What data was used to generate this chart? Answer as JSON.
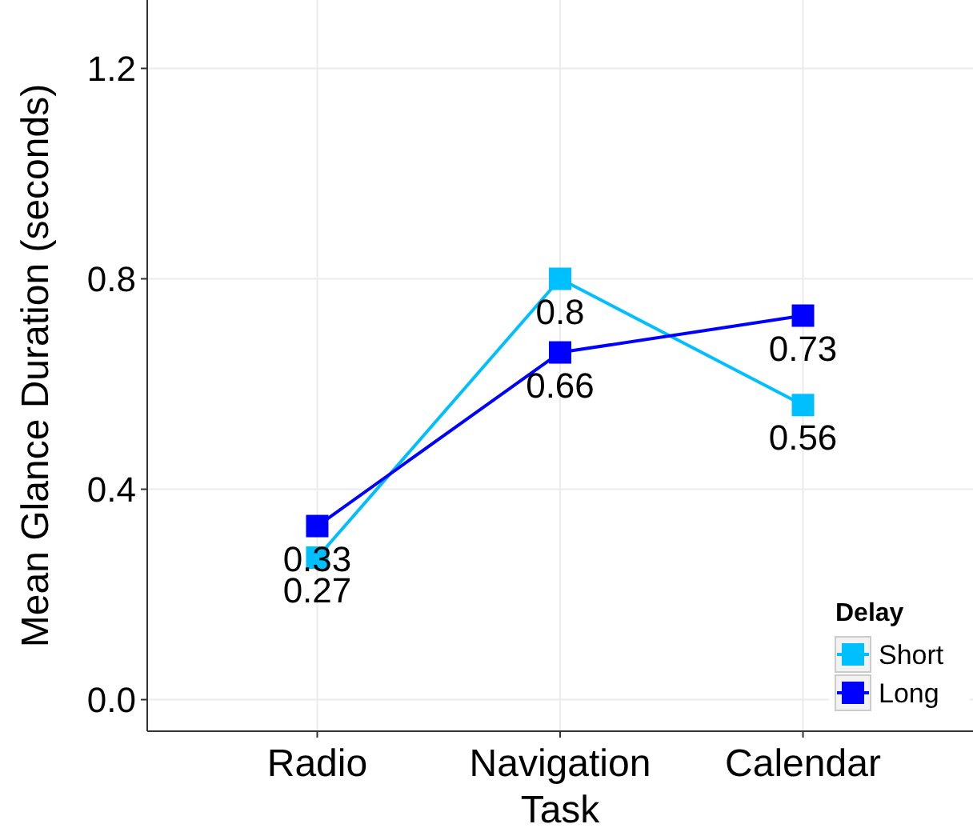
{
  "chart_data": {
    "type": "line",
    "xlabel": "Task",
    "ylabel": "Mean Glance Duration (seconds)",
    "legend_title": "Delay",
    "categories": [
      "Radio",
      "Navigation",
      "Calendar"
    ],
    "series": [
      {
        "name": "Short",
        "color": "#00bfff",
        "values": [
          0.27,
          0.8,
          0.56
        ]
      },
      {
        "name": "Long",
        "color": "#0000ff",
        "values": [
          0.33,
          0.66,
          0.73
        ]
      }
    ],
    "ylim": [
      -0.06,
      1.33
    ],
    "yticks": [
      {
        "value": 0,
        "label": "0.0"
      },
      0.4,
      0.8,
      1.2
    ],
    "grid": true,
    "legend": "bottom right",
    "marker": "square",
    "line_style": "solid",
    "data_labels": true
  }
}
